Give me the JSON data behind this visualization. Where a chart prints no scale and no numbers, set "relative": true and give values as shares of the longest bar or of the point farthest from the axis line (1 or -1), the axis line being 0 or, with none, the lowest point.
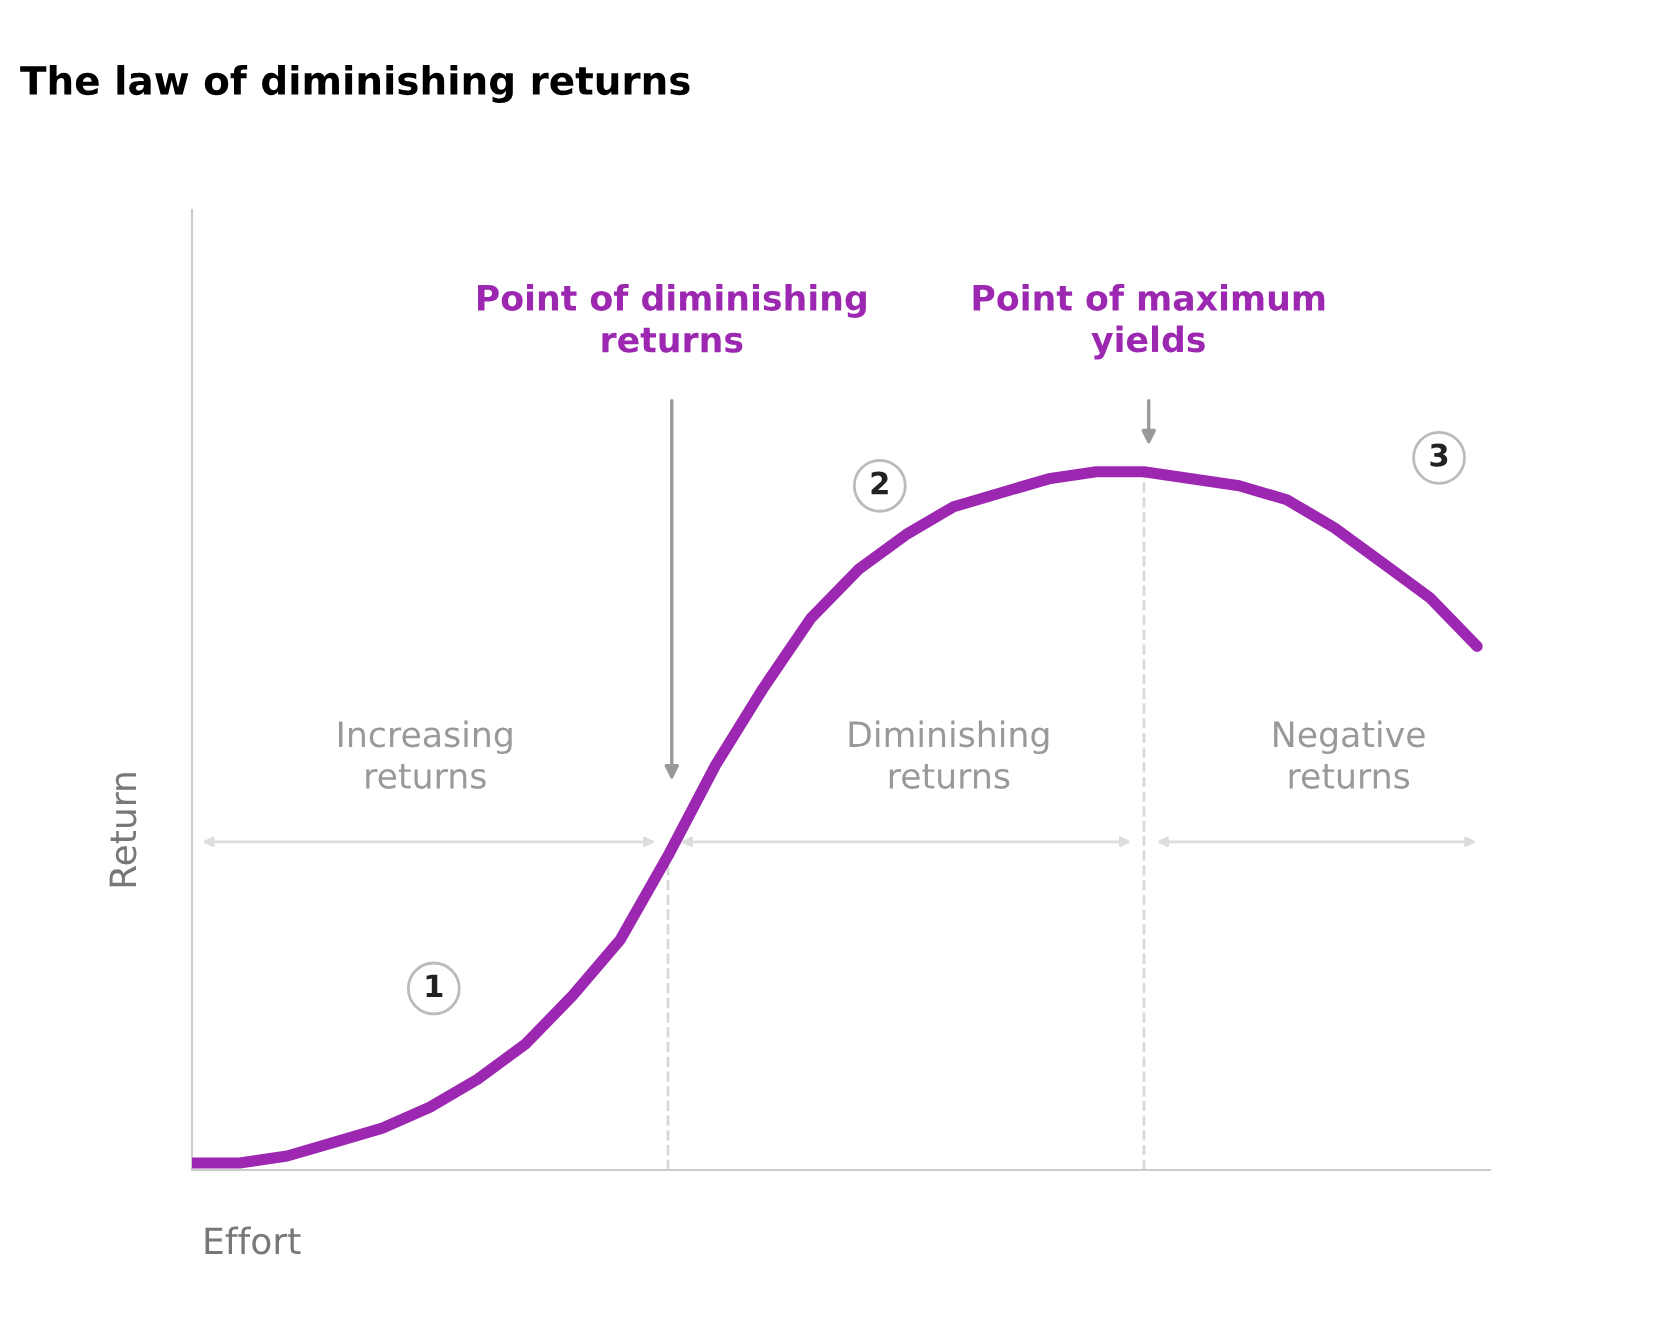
{
  "chart_data": {
    "type": "line",
    "title": "The law of diminishing returns",
    "xlabel": "Effort",
    "ylabel": "Return",
    "relative": true,
    "categories": [
      null,
      null,
      null,
      null,
      null,
      null,
      null,
      null,
      null,
      null,
      null,
      null,
      null,
      null,
      null,
      null,
      null,
      null,
      null,
      null,
      null,
      null,
      null,
      null,
      null,
      null,
      null,
      null
    ],
    "series": [
      {
        "color": "#9c27b0",
        "values": [
          0.01,
          0.01,
          0.02,
          0.04,
          0.06,
          0.09,
          0.13,
          0.18,
          0.25,
          0.33,
          0.45,
          0.58,
          0.69,
          0.79,
          0.86,
          0.91,
          0.95,
          0.97,
          0.99,
          1.0,
          1.0,
          0.99,
          0.98,
          0.96,
          0.92,
          0.87,
          0.82,
          0.75
        ]
      }
    ],
    "annotations": [
      "Point of diminishing\nreturns",
      "Point of maximum\nyields",
      "1",
      "2",
      "3",
      "Increasing\nreturns",
      "Diminishing\nreturns",
      "Negative\nreturns"
    ],
    "marker": "none",
    "line_style": "solid"
  }
}
